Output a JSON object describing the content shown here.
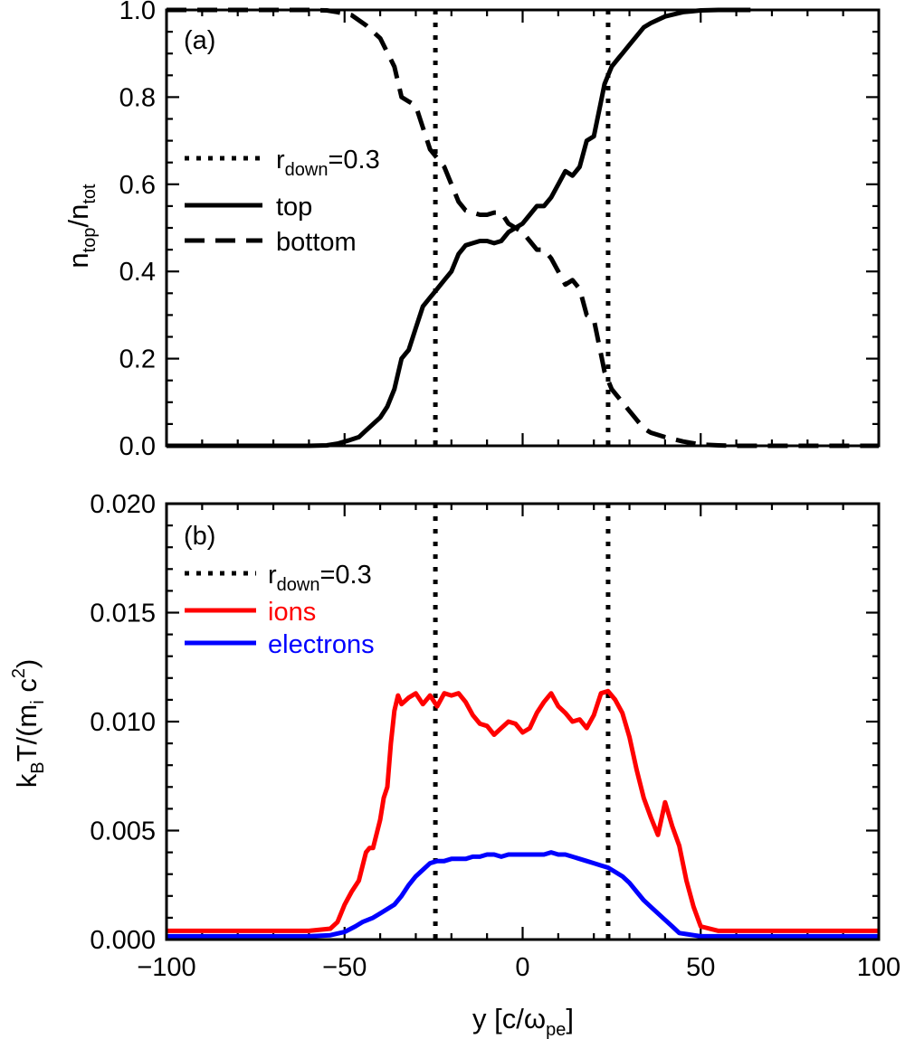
{
  "chart_data": [
    {
      "type": "line",
      "panel_label": "(a)",
      "xlabel": "",
      "ylabel": {
        "main": "n",
        "sub1": "top",
        "slash": "/n",
        "sub2": "tot"
      },
      "xlim": [
        -100,
        100
      ],
      "ylim": [
        0.0,
        1.0
      ],
      "yticks": [
        0.0,
        0.2,
        0.4,
        0.6,
        0.8,
        1.0
      ],
      "ytick_labels": [
        "0.0",
        "0.2",
        "0.4",
        "0.6",
        "0.8",
        "1.0"
      ],
      "xticks": [
        -100,
        -50,
        0,
        50,
        100
      ],
      "vlines": [
        -24.5,
        24
      ],
      "legend": {
        "position": "middle-left",
        "entries": [
          {
            "style": "dotted",
            "label_main": "r",
            "label_sub": "down",
            "label_rest": "=0.3"
          },
          {
            "style": "solid",
            "label": "top"
          },
          {
            "style": "dashed",
            "label": "bottom"
          }
        ]
      },
      "series": [
        {
          "name": "top",
          "style": "solid",
          "color": "#000000",
          "x": [
            -100,
            -80,
            -60,
            -55,
            -52,
            -49,
            -46,
            -44,
            -42,
            -40,
            -38,
            -36,
            -34,
            -33,
            -32,
            -30,
            -28,
            -26,
            -24,
            -22,
            -20,
            -18,
            -16,
            -14,
            -12,
            -10,
            -8,
            -6,
            -4,
            -2,
            0,
            2,
            4,
            6,
            8,
            10,
            12,
            14,
            16,
            18,
            20,
            22,
            23,
            24,
            25,
            26,
            27,
            28,
            30,
            32,
            34,
            36,
            40,
            45,
            50,
            55,
            60,
            64
          ],
          "y": [
            0,
            0,
            0,
            0.001,
            0.005,
            0.012,
            0.02,
            0.035,
            0.05,
            0.065,
            0.09,
            0.13,
            0.2,
            0.21,
            0.22,
            0.27,
            0.32,
            0.34,
            0.36,
            0.38,
            0.4,
            0.44,
            0.46,
            0.465,
            0.47,
            0.47,
            0.465,
            0.47,
            0.49,
            0.5,
            0.51,
            0.53,
            0.55,
            0.55,
            0.57,
            0.6,
            0.63,
            0.62,
            0.64,
            0.7,
            0.71,
            0.79,
            0.83,
            0.85,
            0.87,
            0.88,
            0.89,
            0.9,
            0.92,
            0.94,
            0.96,
            0.97,
            0.985,
            0.995,
            0.999,
            1.0,
            1.0,
            1.0
          ]
        },
        {
          "name": "bottom",
          "style": "dashed",
          "color": "#000000",
          "x": [
            -100,
            -80,
            -64,
            -60,
            -55,
            -52,
            -48,
            -44,
            -40,
            -36,
            -34,
            -32,
            -30,
            -28,
            -26,
            -24,
            -22,
            -20,
            -18,
            -16,
            -14,
            -12,
            -10,
            -8,
            -6,
            -4,
            -2,
            0,
            2,
            4,
            6,
            8,
            10,
            12,
            14,
            16,
            18,
            20,
            22,
            23,
            24,
            25,
            26,
            28,
            30,
            32,
            34,
            36,
            40,
            45,
            50,
            55,
            60,
            80,
            100
          ],
          "y": [
            1,
            1,
            1,
            1,
            0.999,
            0.995,
            0.988,
            0.965,
            0.935,
            0.87,
            0.8,
            0.79,
            0.78,
            0.73,
            0.68,
            0.66,
            0.64,
            0.6,
            0.56,
            0.54,
            0.535,
            0.53,
            0.53,
            0.535,
            0.535,
            0.51,
            0.5,
            0.49,
            0.47,
            0.45,
            0.45,
            0.43,
            0.4,
            0.37,
            0.38,
            0.36,
            0.3,
            0.29,
            0.21,
            0.17,
            0.15,
            0.13,
            0.12,
            0.1,
            0.08,
            0.06,
            0.04,
            0.03,
            0.02,
            0.01,
            0.003,
            0.001,
            0,
            0,
            0
          ]
        }
      ]
    },
    {
      "type": "line",
      "panel_label": "(b)",
      "xlabel": {
        "main": "y [c/ω",
        "sub": "pe",
        "close": "]"
      },
      "ylabel": {
        "p1": "k",
        "sub1": "B",
        "p2": "T/(m",
        "sub2": "i",
        "p3": " c",
        "sup": "2",
        "p4": ")"
      },
      "xlim": [
        -100,
        100
      ],
      "ylim": [
        0.0,
        0.02
      ],
      "yticks": [
        0.0,
        0.005,
        0.01,
        0.015,
        0.02
      ],
      "ytick_labels": [
        "0.000",
        "0.005",
        "0.010",
        "0.015",
        "0.020"
      ],
      "xticks": [
        -100,
        -50,
        0,
        50,
        100
      ],
      "xtick_labels": [
        "−100",
        "−50",
        "0",
        "50",
        "100"
      ],
      "vlines": [
        -24.5,
        24
      ],
      "legend": {
        "position": "top-left",
        "entries": [
          {
            "style": "dotted",
            "color": "#000000",
            "label_main": "r",
            "label_sub": "down",
            "label_rest": "=0.3"
          },
          {
            "style": "solid",
            "color": "#ff0000",
            "label": "ions"
          },
          {
            "style": "solid",
            "color": "#0000ff",
            "label": "electrons"
          }
        ]
      },
      "series": [
        {
          "name": "ions",
          "style": "solid",
          "color": "#ff0000",
          "x": [
            -100,
            -90,
            -80,
            -70,
            -60,
            -54,
            -52,
            -50,
            -48,
            -46,
            -44,
            -43,
            -42,
            -40,
            -39,
            -38,
            -37,
            -36,
            -35,
            -34,
            -32,
            -30,
            -28,
            -26,
            -24,
            -22,
            -20,
            -18,
            -16,
            -14,
            -12,
            -10,
            -8,
            -6,
            -4,
            -2,
            0,
            2,
            4,
            6,
            8,
            10,
            12,
            14,
            16,
            18,
            20,
            22,
            24,
            26,
            28,
            30,
            32,
            34,
            36,
            38,
            40,
            42,
            44,
            46,
            48,
            50,
            55,
            60,
            70,
            80,
            90,
            100
          ],
          "y": [
            0.0004,
            0.0004,
            0.0004,
            0.0004,
            0.0004,
            0.0005,
            0.0008,
            0.0016,
            0.0022,
            0.0027,
            0.004,
            0.0042,
            0.0042,
            0.0055,
            0.0065,
            0.007,
            0.009,
            0.0105,
            0.0112,
            0.0108,
            0.0111,
            0.0113,
            0.0108,
            0.0112,
            0.0107,
            0.0113,
            0.0112,
            0.0113,
            0.0109,
            0.0103,
            0.0099,
            0.0098,
            0.0094,
            0.0097,
            0.01,
            0.0099,
            0.0095,
            0.0097,
            0.0104,
            0.0109,
            0.0113,
            0.0107,
            0.0104,
            0.01,
            0.0101,
            0.0097,
            0.0103,
            0.0113,
            0.0114,
            0.011,
            0.0104,
            0.0093,
            0.0078,
            0.0065,
            0.0056,
            0.0048,
            0.0063,
            0.0052,
            0.0043,
            0.0027,
            0.0015,
            0.0006,
            0.0004,
            0.0004,
            0.0004,
            0.0004,
            0.0004,
            0.0004
          ]
        },
        {
          "name": "electrons",
          "style": "solid",
          "color": "#0000ff",
          "x": [
            -100,
            -90,
            -80,
            -70,
            -60,
            -54,
            -50,
            -47,
            -45,
            -42,
            -40,
            -38,
            -36,
            -34,
            -32,
            -30,
            -28,
            -26,
            -24,
            -22,
            -20,
            -18,
            -16,
            -14,
            -12,
            -10,
            -8,
            -6,
            -4,
            -2,
            0,
            2,
            4,
            6,
            8,
            10,
            12,
            14,
            16,
            18,
            20,
            22,
            24,
            26,
            28,
            30,
            32,
            34,
            36,
            38,
            40,
            42,
            44,
            46,
            48,
            50,
            55,
            60,
            70,
            80,
            90,
            100
          ],
          "y": [
            0.00015,
            0.00015,
            0.00015,
            0.00015,
            0.00015,
            0.0002,
            0.00035,
            0.0006,
            0.0008,
            0.001,
            0.0012,
            0.0014,
            0.0016,
            0.002,
            0.0025,
            0.0029,
            0.0032,
            0.0035,
            0.0036,
            0.0036,
            0.0037,
            0.0037,
            0.0037,
            0.0038,
            0.0038,
            0.0039,
            0.0039,
            0.0038,
            0.0039,
            0.0039,
            0.0039,
            0.0039,
            0.0039,
            0.0039,
            0.004,
            0.0039,
            0.0039,
            0.0038,
            0.0037,
            0.0036,
            0.0035,
            0.0034,
            0.0033,
            0.0031,
            0.0029,
            0.0026,
            0.0022,
            0.0018,
            0.0015,
            0.0012,
            0.0009,
            0.0006,
            0.0003,
            0.00025,
            0.0002,
            0.00015,
            0.00015,
            0.00015,
            0.00015,
            0.00015,
            0.00015,
            0.00015
          ]
        }
      ]
    }
  ]
}
